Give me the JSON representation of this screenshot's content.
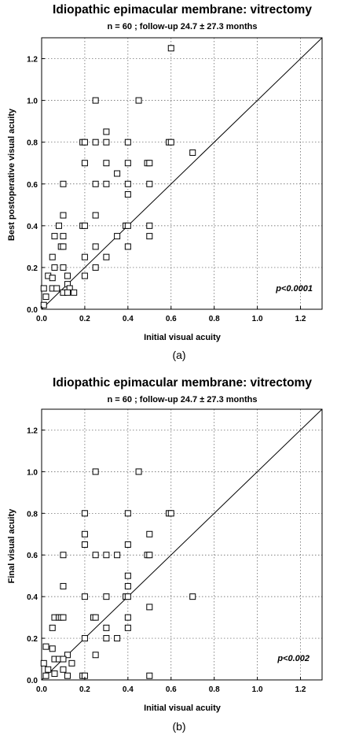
{
  "chart_data": [
    {
      "type": "scatter",
      "title": "Idiopathic epimacular membrane: vitrectomy",
      "subtitle": "n = 60 ; follow-up 24.7 ± 27.3 months",
      "xlabel": "Initial visual acuity",
      "ylabel": "Best postoperative visual acuity",
      "xlim": [
        0,
        1.3
      ],
      "ylim": [
        0,
        1.3
      ],
      "xticks": [
        "0.0",
        "0.2",
        "0.4",
        "0.6",
        "0.8",
        "1.0",
        "1.2"
      ],
      "yticks": [
        "0.0",
        "0.2",
        "0.4",
        "0.6",
        "0.8",
        "1.0",
        "1.2"
      ],
      "grid": true,
      "reference_line": "y = x",
      "annotation": "p<0.0001",
      "caption": "(a)",
      "points": [
        {
          "x": 0.6,
          "y": 1.25
        },
        {
          "x": 0.25,
          "y": 1.0
        },
        {
          "x": 0.45,
          "y": 1.0
        },
        {
          "x": 0.3,
          "y": 0.85
        },
        {
          "x": 0.19,
          "y": 0.8
        },
        {
          "x": 0.2,
          "y": 0.8
        },
        {
          "x": 0.25,
          "y": 0.8
        },
        {
          "x": 0.3,
          "y": 0.8
        },
        {
          "x": 0.4,
          "y": 0.8
        },
        {
          "x": 0.59,
          "y": 0.8
        },
        {
          "x": 0.6,
          "y": 0.8
        },
        {
          "x": 0.7,
          "y": 0.75
        },
        {
          "x": 0.2,
          "y": 0.7
        },
        {
          "x": 0.3,
          "y": 0.7
        },
        {
          "x": 0.4,
          "y": 0.7
        },
        {
          "x": 0.49,
          "y": 0.7
        },
        {
          "x": 0.5,
          "y": 0.7
        },
        {
          "x": 0.35,
          "y": 0.65
        },
        {
          "x": 0.1,
          "y": 0.6
        },
        {
          "x": 0.25,
          "y": 0.6
        },
        {
          "x": 0.3,
          "y": 0.6
        },
        {
          "x": 0.4,
          "y": 0.6
        },
        {
          "x": 0.5,
          "y": 0.6
        },
        {
          "x": 0.4,
          "y": 0.55
        },
        {
          "x": 0.1,
          "y": 0.45
        },
        {
          "x": 0.25,
          "y": 0.45
        },
        {
          "x": 0.08,
          "y": 0.4
        },
        {
          "x": 0.19,
          "y": 0.4
        },
        {
          "x": 0.2,
          "y": 0.4
        },
        {
          "x": 0.39,
          "y": 0.4
        },
        {
          "x": 0.4,
          "y": 0.4
        },
        {
          "x": 0.5,
          "y": 0.4
        },
        {
          "x": 0.06,
          "y": 0.35
        },
        {
          "x": 0.1,
          "y": 0.35
        },
        {
          "x": 0.35,
          "y": 0.35
        },
        {
          "x": 0.5,
          "y": 0.35
        },
        {
          "x": 0.09,
          "y": 0.3
        },
        {
          "x": 0.1,
          "y": 0.3
        },
        {
          "x": 0.25,
          "y": 0.3
        },
        {
          "x": 0.4,
          "y": 0.3
        },
        {
          "x": 0.05,
          "y": 0.25
        },
        {
          "x": 0.2,
          "y": 0.25
        },
        {
          "x": 0.3,
          "y": 0.25
        },
        {
          "x": 0.06,
          "y": 0.2
        },
        {
          "x": 0.1,
          "y": 0.2
        },
        {
          "x": 0.25,
          "y": 0.2
        },
        {
          "x": 0.03,
          "y": 0.16
        },
        {
          "x": 0.05,
          "y": 0.15
        },
        {
          "x": 0.12,
          "y": 0.16
        },
        {
          "x": 0.2,
          "y": 0.16
        },
        {
          "x": 0.01,
          "y": 0.1
        },
        {
          "x": 0.05,
          "y": 0.1
        },
        {
          "x": 0.07,
          "y": 0.1
        },
        {
          "x": 0.12,
          "y": 0.12
        },
        {
          "x": 0.13,
          "y": 0.1
        },
        {
          "x": 0.02,
          "y": 0.06
        },
        {
          "x": 0.1,
          "y": 0.08
        },
        {
          "x": 0.12,
          "y": 0.08
        },
        {
          "x": 0.15,
          "y": 0.08
        },
        {
          "x": 0.01,
          "y": 0.02
        }
      ]
    },
    {
      "type": "scatter",
      "title": "Idiopathic epimacular membrane: vitrectomy",
      "subtitle": "n = 60 ; follow-up 24.7 ± 27.3 months",
      "xlabel": "Initial visual acuity",
      "ylabel": "Final visual acuity",
      "xlim": [
        0,
        1.3
      ],
      "ylim": [
        0,
        1.3
      ],
      "xticks": [
        "0.0",
        "0.2",
        "0.4",
        "0.6",
        "0.8",
        "1.0",
        "1.2"
      ],
      "yticks": [
        "0.0",
        "0.2",
        "0.4",
        "0.6",
        "0.8",
        "1.0",
        "1.2"
      ],
      "grid": true,
      "reference_line": "y = x",
      "annotation": "p<0.002",
      "caption": "(b)",
      "points": [
        {
          "x": 0.25,
          "y": 1.0
        },
        {
          "x": 0.45,
          "y": 1.0
        },
        {
          "x": 0.2,
          "y": 0.8
        },
        {
          "x": 0.4,
          "y": 0.8
        },
        {
          "x": 0.59,
          "y": 0.8
        },
        {
          "x": 0.6,
          "y": 0.8
        },
        {
          "x": 0.2,
          "y": 0.7
        },
        {
          "x": 0.5,
          "y": 0.7
        },
        {
          "x": 0.2,
          "y": 0.65
        },
        {
          "x": 0.4,
          "y": 0.65
        },
        {
          "x": 0.1,
          "y": 0.6
        },
        {
          "x": 0.25,
          "y": 0.6
        },
        {
          "x": 0.3,
          "y": 0.6
        },
        {
          "x": 0.35,
          "y": 0.6
        },
        {
          "x": 0.49,
          "y": 0.6
        },
        {
          "x": 0.5,
          "y": 0.6
        },
        {
          "x": 0.4,
          "y": 0.5
        },
        {
          "x": 0.1,
          "y": 0.45
        },
        {
          "x": 0.4,
          "y": 0.45
        },
        {
          "x": 0.2,
          "y": 0.4
        },
        {
          "x": 0.3,
          "y": 0.4
        },
        {
          "x": 0.39,
          "y": 0.4
        },
        {
          "x": 0.4,
          "y": 0.4
        },
        {
          "x": 0.7,
          "y": 0.4
        },
        {
          "x": 0.5,
          "y": 0.35
        },
        {
          "x": 0.06,
          "y": 0.3
        },
        {
          "x": 0.08,
          "y": 0.3
        },
        {
          "x": 0.09,
          "y": 0.3
        },
        {
          "x": 0.1,
          "y": 0.3
        },
        {
          "x": 0.24,
          "y": 0.3
        },
        {
          "x": 0.25,
          "y": 0.3
        },
        {
          "x": 0.4,
          "y": 0.3
        },
        {
          "x": 0.05,
          "y": 0.25
        },
        {
          "x": 0.3,
          "y": 0.25
        },
        {
          "x": 0.4,
          "y": 0.25
        },
        {
          "x": 0.2,
          "y": 0.2
        },
        {
          "x": 0.3,
          "y": 0.2
        },
        {
          "x": 0.35,
          "y": 0.2
        },
        {
          "x": 0.02,
          "y": 0.16
        },
        {
          "x": 0.05,
          "y": 0.15
        },
        {
          "x": 0.25,
          "y": 0.12
        },
        {
          "x": 0.12,
          "y": 0.12
        },
        {
          "x": 0.06,
          "y": 0.1
        },
        {
          "x": 0.08,
          "y": 0.1
        },
        {
          "x": 0.1,
          "y": 0.1
        },
        {
          "x": 0.14,
          "y": 0.08
        },
        {
          "x": 0.01,
          "y": 0.08
        },
        {
          "x": 0.03,
          "y": 0.05
        },
        {
          "x": 0.1,
          "y": 0.05
        },
        {
          "x": 0.06,
          "y": 0.03
        },
        {
          "x": 0.12,
          "y": 0.02
        },
        {
          "x": 0.02,
          "y": 0.02
        },
        {
          "x": 0.19,
          "y": 0.02
        },
        {
          "x": 0.2,
          "y": 0.02
        },
        {
          "x": 0.5,
          "y": 0.02
        }
      ]
    }
  ]
}
